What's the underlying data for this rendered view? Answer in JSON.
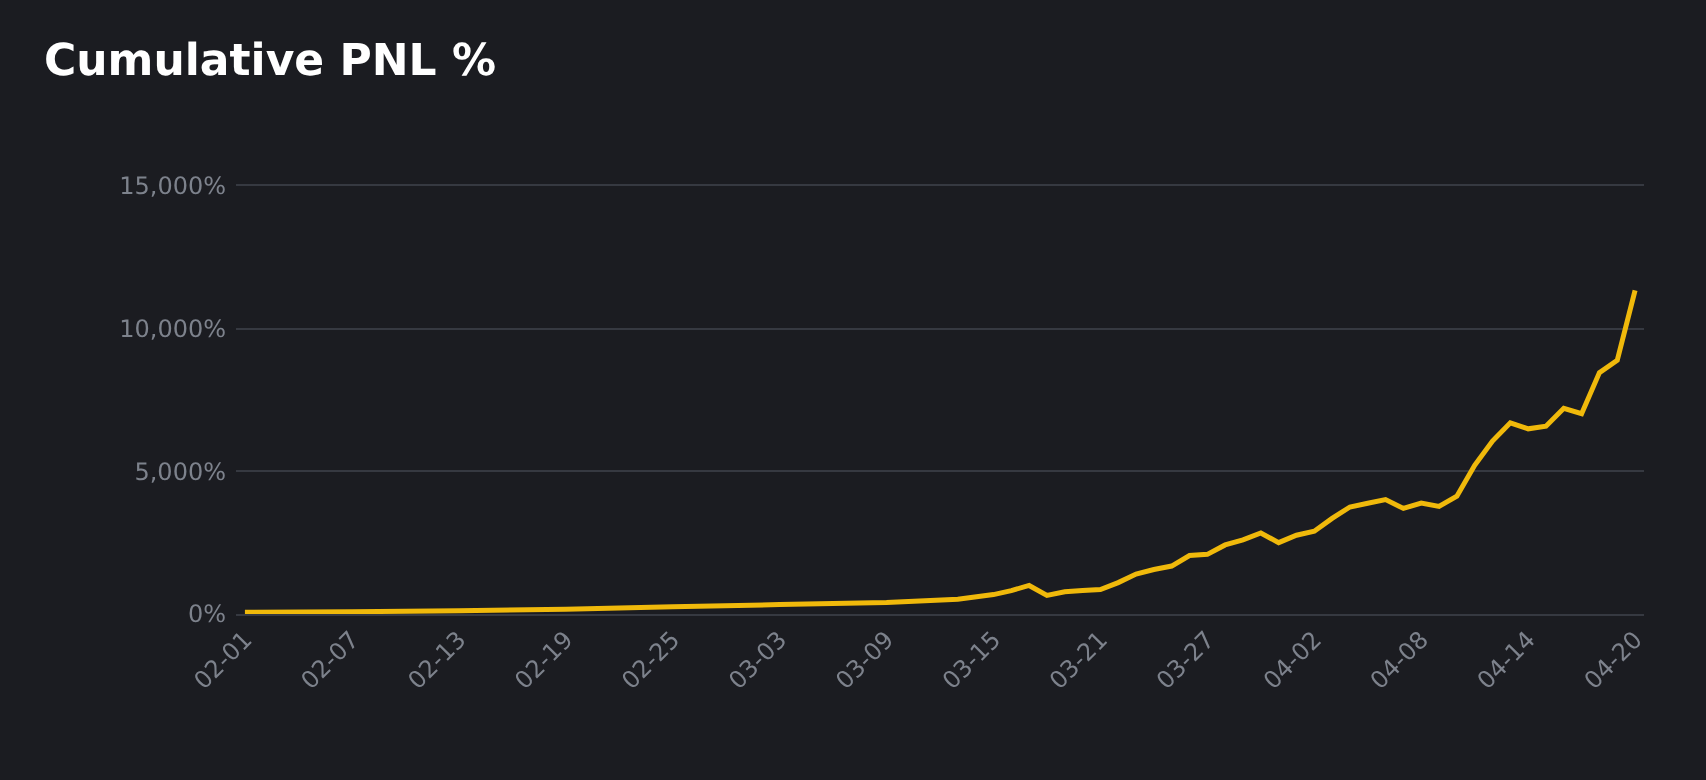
{
  "chart_data": {
    "type": "line",
    "title": "Cumulative PNL %",
    "x": [
      "--02-01",
      "--02-07",
      "--02-13",
      "--02-19",
      "--02-25",
      "--03-03",
      "--03-09",
      "--03-13",
      "--03-15",
      "--03-16",
      "--03-17",
      "--03-18",
      "--03-19",
      "--03-20",
      "--03-21",
      "--03-22",
      "--03-23",
      "--03-24",
      "--03-25",
      "--03-26",
      "--03-27",
      "--03-28",
      "--03-29",
      "--03-30",
      "--03-31",
      "--04-01",
      "--04-02",
      "--04-03",
      "--04-04",
      "--04-05",
      "--04-06",
      "--04-07",
      "--04-08",
      "--04-09",
      "--04-10",
      "--04-11",
      "--04-12",
      "--04-13",
      "--04-14",
      "--04-15",
      "--04-16",
      "--04-17",
      "--04-18",
      "--04-19",
      "--04-20"
    ],
    "series": [
      {
        "color": "#f0b90b",
        "values": [
          60,
          80,
          110,
          170,
          250,
          330,
          400,
          520,
          680,
          820,
          1000,
          650,
          780,
          820,
          860,
          1100,
          1400,
          1560,
          1680,
          2050,
          2090,
          2420,
          2600,
          2840,
          2500,
          2760,
          2900,
          3350,
          3750,
          3880,
          4010,
          3700,
          3890,
          3770,
          4130,
          5210,
          6060,
          6700,
          6490,
          6580,
          7210,
          7020,
          8460,
          8890,
          11340
        ]
      }
    ],
    "xlim": [
      "--01-31T12:00",
      "--04-20T12:00"
    ],
    "xticks": [
      {
        "value": "--02-01",
        "label": "02-01"
      },
      {
        "value": "--02-07",
        "label": "02-07"
      },
      {
        "value": "--02-13",
        "label": "02-13"
      },
      {
        "value": "--02-19",
        "label": "02-19"
      },
      {
        "value": "--02-25",
        "label": "02-25"
      },
      {
        "value": "--03-03",
        "label": "03-03"
      },
      {
        "value": "--03-09",
        "label": "03-09"
      },
      {
        "value": "--03-15",
        "label": "03-15"
      },
      {
        "value": "--03-21",
        "label": "03-21"
      },
      {
        "value": "--03-27",
        "label": "03-27"
      },
      {
        "value": "--04-02",
        "label": "04-02"
      },
      {
        "value": "--04-08",
        "label": "04-08"
      },
      {
        "value": "--04-14",
        "label": "04-14"
      },
      {
        "value": "--04-20",
        "label": "04-20"
      }
    ],
    "ylim": [
      0,
      15000
    ],
    "yticks": [
      {
        "value": 0,
        "label": "0%"
      },
      {
        "value": 5000,
        "label": "5,000%"
      },
      {
        "value": 10000,
        "label": "10,000%"
      },
      {
        "value": 15000,
        "label": "15,000%"
      }
    ],
    "grid": "y",
    "marker": "none",
    "line_style": "solid"
  }
}
